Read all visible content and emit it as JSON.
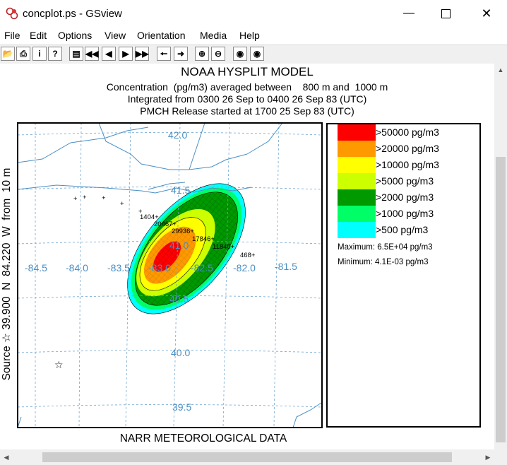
{
  "window": {
    "title": "concplot.ps - GSview"
  },
  "menu": [
    "File",
    "Edit",
    "Options",
    "View",
    "Orientation",
    "Media",
    "Help"
  ],
  "toolbar_icons": [
    "open-icon",
    "print-icon",
    "info-icon",
    "help-icon",
    "page-icon",
    "first-page-icon",
    "prev-page-icon",
    "next-page-icon",
    "last-page-icon",
    "back-icon",
    "forward-icon",
    "zoom-in-icon",
    "zoom-out-icon",
    "eye-icon",
    "eye-icon"
  ],
  "plot": {
    "title": "NOAA HYSPLIT MODEL",
    "line1": "Concentration  (pg/m3) averaged between    800 m and  1000 m",
    "line2": "Integrated from 0300 26 Sep to 0400 26 Sep 83 (UTC)",
    "line3": "PMCH Release started at 1700 25 Sep 83 (UTC)",
    "source_label": "Source ☆ 39.900  N  84.220  W  from  10 m",
    "footer": "NARR METEOROLOGICAL DATA",
    "lon_labels": [
      "-84.5",
      "-84.0",
      "-83.5",
      "-83.0",
      "-82.5",
      "-82.0",
      "-81.5"
    ],
    "lat_labels": [
      "42.0",
      "41.5",
      "41.0",
      "40.5",
      "40.0",
      "39.5"
    ],
    "samples": [
      {
        "label": "1404+"
      },
      {
        "label": "20467+"
      },
      {
        "label": "29936+"
      },
      {
        "label": "17846+"
      },
      {
        "label": "11840+"
      },
      {
        "label": "468+"
      }
    ]
  },
  "legend": {
    "items": [
      {
        "label": ">50000 pg/m3",
        "color": "#ff0000"
      },
      {
        "label": ">20000 pg/m3",
        "color": "#ff9900"
      },
      {
        "label": ">10000 pg/m3",
        "color": "#ffff00"
      },
      {
        "label": ">5000 pg/m3",
        "color": "#ccff00"
      },
      {
        "label": ">2000 pg/m3",
        "color": "#009900"
      },
      {
        "label": ">1000 pg/m3",
        "color": "#00ff66"
      },
      {
        "label": ">500 pg/m3",
        "color": "#00ffff"
      }
    ],
    "maximum": "Maximum: 6.5E+04 pg/m3",
    "minimum": "Minimum: 4.1E-03 pg/m3"
  }
}
